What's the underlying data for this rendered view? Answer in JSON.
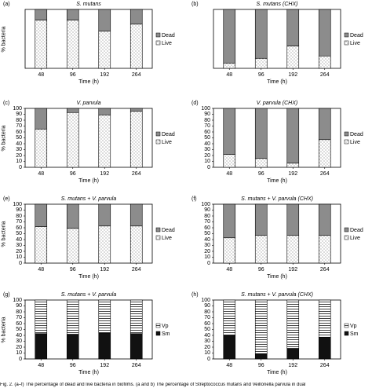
{
  "figure": {
    "caption": "Fig. 2. (a–f) The percentage of dead and live bacteria in biofilms. (a and b) The percentage of Streptococcus mutans and Veillonella parvula in dual"
  },
  "chart_data": [
    {
      "type": "bar",
      "stacked": true,
      "panel": "(a)",
      "title": "S. mutans",
      "xlabel": "Time (h)",
      "ylabel": "% bacteria",
      "categories": [
        "48",
        "96",
        "192",
        "264"
      ],
      "ylim": [
        0,
        100
      ],
      "y_ticks": [],
      "grid": false,
      "legend_position": "right",
      "series": [
        {
          "name": "Live",
          "pattern": "dots",
          "values": [
            82,
            82,
            63,
            75
          ]
        },
        {
          "name": "Dead",
          "pattern": "solid-gray",
          "values": [
            18,
            18,
            37,
            25
          ]
        }
      ]
    },
    {
      "type": "bar",
      "stacked": true,
      "panel": "(b)",
      "title": "S. mutans (CHX)",
      "xlabel": "Time (h)",
      "ylabel": "",
      "categories": [
        "48",
        "96",
        "192",
        "264"
      ],
      "ylim": [
        0,
        100
      ],
      "y_ticks": [],
      "grid": false,
      "legend_position": "right",
      "series": [
        {
          "name": "Live",
          "pattern": "dots",
          "values": [
            9,
            17,
            38,
            21
          ]
        },
        {
          "name": "Dead",
          "pattern": "solid-gray",
          "values": [
            91,
            83,
            62,
            79
          ]
        }
      ]
    },
    {
      "type": "bar",
      "stacked": true,
      "panel": "(c)",
      "title": "V. parvula",
      "xlabel": "Time (h)",
      "ylabel": "% bacteria",
      "categories": [
        "48",
        "96",
        "192",
        "264"
      ],
      "ylim": [
        0,
        100
      ],
      "y_ticks": [
        "0",
        "10",
        "20",
        "30",
        "40",
        "50",
        "60",
        "70",
        "80",
        "90",
        "100"
      ],
      "grid": false,
      "legend_position": "right",
      "series": [
        {
          "name": "Live",
          "pattern": "dots",
          "values": [
            65,
            93,
            89,
            95
          ]
        },
        {
          "name": "Dead",
          "pattern": "solid-gray",
          "values": [
            35,
            7,
            11,
            5
          ]
        }
      ]
    },
    {
      "type": "bar",
      "stacked": true,
      "panel": "(d)",
      "title": "V. parvula (CHX)",
      "xlabel": "Time (h)",
      "ylabel": "",
      "categories": [
        "48",
        "96",
        "192",
        "264"
      ],
      "ylim": [
        0,
        100
      ],
      "y_ticks": [
        "0",
        "10",
        "20",
        "30",
        "40",
        "50",
        "60",
        "70",
        "80",
        "90",
        "100"
      ],
      "grid": false,
      "legend_position": "right",
      "series": [
        {
          "name": "Live",
          "pattern": "dots",
          "values": [
            22,
            15,
            7,
            47
          ]
        },
        {
          "name": "Dead",
          "pattern": "solid-gray",
          "values": [
            78,
            85,
            93,
            53
          ]
        }
      ]
    },
    {
      "type": "bar",
      "stacked": true,
      "panel": "(e)",
      "title": "S. mutans + V. parvula",
      "xlabel": "Time (h)",
      "ylabel": "% bacteria",
      "categories": [
        "48",
        "96",
        "192",
        "264"
      ],
      "ylim": [
        0,
        100
      ],
      "y_ticks": [
        "0",
        "10",
        "20",
        "30",
        "40",
        "50",
        "60",
        "70",
        "80",
        "90",
        "100"
      ],
      "grid": false,
      "legend_position": "right",
      "series": [
        {
          "name": "Live",
          "pattern": "dots",
          "values": [
            62,
            59,
            63,
            63
          ]
        },
        {
          "name": "Dead",
          "pattern": "solid-gray",
          "values": [
            38,
            41,
            37,
            37
          ]
        }
      ]
    },
    {
      "type": "bar",
      "stacked": true,
      "panel": "(f)",
      "title": "S. mutans + V. parvula (CHX)",
      "xlabel": "Time (h)",
      "ylabel": "",
      "categories": [
        "48",
        "96",
        "192",
        "264"
      ],
      "ylim": [
        0,
        100
      ],
      "y_ticks": [
        "0",
        "10",
        "20",
        "30",
        "40",
        "50",
        "60",
        "70",
        "80",
        "90",
        "100"
      ],
      "grid": false,
      "legend_position": "right",
      "series": [
        {
          "name": "Live",
          "pattern": "dots",
          "values": [
            43,
            47,
            47,
            47
          ]
        },
        {
          "name": "Dead",
          "pattern": "solid-gray",
          "values": [
            57,
            53,
            53,
            53
          ]
        }
      ]
    },
    {
      "type": "bar",
      "stacked": true,
      "panel": "(g)",
      "title": "S. mutans + V. parvula",
      "xlabel": "Time (h)",
      "ylabel": "% bacteria",
      "categories": [
        "48",
        "96",
        "192",
        "264"
      ],
      "ylim": [
        0,
        100
      ],
      "y_ticks": [
        "0",
        "10",
        "20",
        "30",
        "40",
        "50",
        "60",
        "70",
        "80",
        "90",
        "100"
      ],
      "grid": false,
      "legend_position": "right",
      "series": [
        {
          "name": "Sm",
          "pattern": "solid-black",
          "values": [
            43,
            42,
            44,
            43
          ]
        },
        {
          "name": "Vp",
          "pattern": "horizontal-stripes",
          "values": [
            57,
            58,
            56,
            57
          ]
        }
      ]
    },
    {
      "type": "bar",
      "stacked": true,
      "panel": "(h)",
      "title": "S. mutans + V. parvula (CHX)",
      "xlabel": "Time (h)",
      "ylabel": "",
      "categories": [
        "48",
        "96",
        "192",
        "264"
      ],
      "ylim": [
        0,
        100
      ],
      "y_ticks": [
        "0",
        "10",
        "20",
        "30",
        "40",
        "50",
        "60",
        "70",
        "80",
        "90",
        "100"
      ],
      "grid": false,
      "legend_position": "right",
      "series": [
        {
          "name": "Sm",
          "pattern": "solid-black",
          "values": [
            40,
            9,
            18,
            37
          ]
        },
        {
          "name": "Vp",
          "pattern": "horizontal-stripes",
          "values": [
            60,
            91,
            82,
            63
          ]
        }
      ]
    }
  ]
}
